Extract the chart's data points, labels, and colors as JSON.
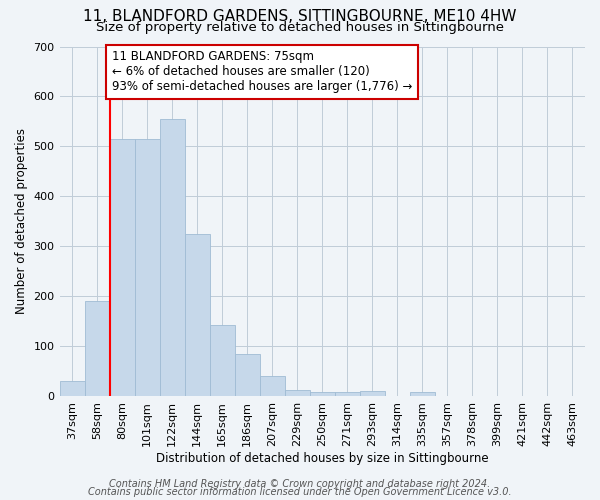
{
  "title": "11, BLANDFORD GARDENS, SITTINGBOURNE, ME10 4HW",
  "subtitle": "Size of property relative to detached houses in Sittingbourne",
  "xlabel": "Distribution of detached houses by size in Sittingbourne",
  "ylabel": "Number of detached properties",
  "categories": [
    "37sqm",
    "58sqm",
    "80sqm",
    "101sqm",
    "122sqm",
    "144sqm",
    "165sqm",
    "186sqm",
    "207sqm",
    "229sqm",
    "250sqm",
    "271sqm",
    "293sqm",
    "314sqm",
    "335sqm",
    "357sqm",
    "378sqm",
    "399sqm",
    "421sqm",
    "442sqm",
    "463sqm"
  ],
  "values": [
    30,
    190,
    515,
    515,
    555,
    325,
    142,
    85,
    40,
    12,
    8,
    8,
    10,
    0,
    8,
    0,
    0,
    0,
    0,
    0,
    0
  ],
  "bar_color": "#c6d8ea",
  "bar_edgecolor": "#a0bcd4",
  "red_line_index": 2,
  "annotation_text": "11 BLANDFORD GARDENS: 75sqm\n← 6% of detached houses are smaller (120)\n93% of semi-detached houses are larger (1,776) →",
  "annotation_box_color": "#ffffff",
  "annotation_box_edge": "#cc0000",
  "ylim": [
    0,
    700
  ],
  "yticks": [
    0,
    100,
    200,
    300,
    400,
    500,
    600,
    700
  ],
  "bg_color": "#f0f4f8",
  "plot_bg_color": "#f0f4f8",
  "footer_line1": "Contains HM Land Registry data © Crown copyright and database right 2024.",
  "footer_line2": "Contains public sector information licensed under the Open Government Licence v3.0.",
  "title_fontsize": 11,
  "subtitle_fontsize": 9.5,
  "label_fontsize": 8.5,
  "tick_fontsize": 8,
  "footer_fontsize": 7,
  "annot_fontsize": 8.5
}
